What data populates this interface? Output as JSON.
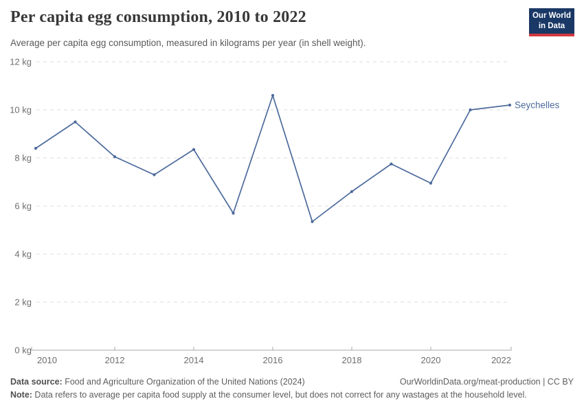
{
  "header": {
    "title": "Per capita egg consumption, 2010 to 2022",
    "subtitle": "Average per capita egg consumption, measured in kilograms per year (in shell weight).",
    "logo_line1": "Our World",
    "logo_line2": "in Data"
  },
  "chart_data": {
    "type": "line",
    "title": "Per capita egg consumption, 2010 to 2022",
    "x": [
      2010,
      2011,
      2012,
      2013,
      2014,
      2015,
      2016,
      2017,
      2018,
      2019,
      2020,
      2021,
      2022
    ],
    "series": [
      {
        "name": "Seychelles",
        "color": "#4c6a9c",
        "values": [
          8.4,
          9.5,
          8.05,
          7.3,
          8.35,
          5.7,
          10.6,
          5.35,
          6.6,
          7.75,
          6.95,
          10.0,
          10.2
        ]
      }
    ],
    "xlim": [
      2010,
      2022
    ],
    "ylim": [
      0,
      12
    ],
    "xticks": [
      2010,
      2012,
      2014,
      2016,
      2018,
      2020,
      2022
    ],
    "yticks": [
      0,
      2,
      4,
      6,
      8,
      10,
      12
    ],
    "ytick_suffix": " kg",
    "grid": "horizontal-dashed",
    "legend_position": "end-of-line-label"
  },
  "footer": {
    "source_label": "Data source:",
    "source_text": " Food and Agriculture Organization of the United Nations (2024)",
    "link_text": "OurWorldinData.org/meat-production | CC BY",
    "note_label": "Note:",
    "note_text": " Data refers to average per capita food supply at the consumer level, but does not correct for any wastages at the household level."
  },
  "colors": {
    "accent_blue": "#4c6a9c",
    "logo_bg": "#1a3866",
    "logo_stripe": "#d0393e",
    "gridline": "#dcdcdc",
    "axis_line": "#a9a9a9",
    "tick_text": "#6e6e6e",
    "title_text": "#383838",
    "subtitle_text": "#595959",
    "footer_text": "#5d5d5d"
  }
}
